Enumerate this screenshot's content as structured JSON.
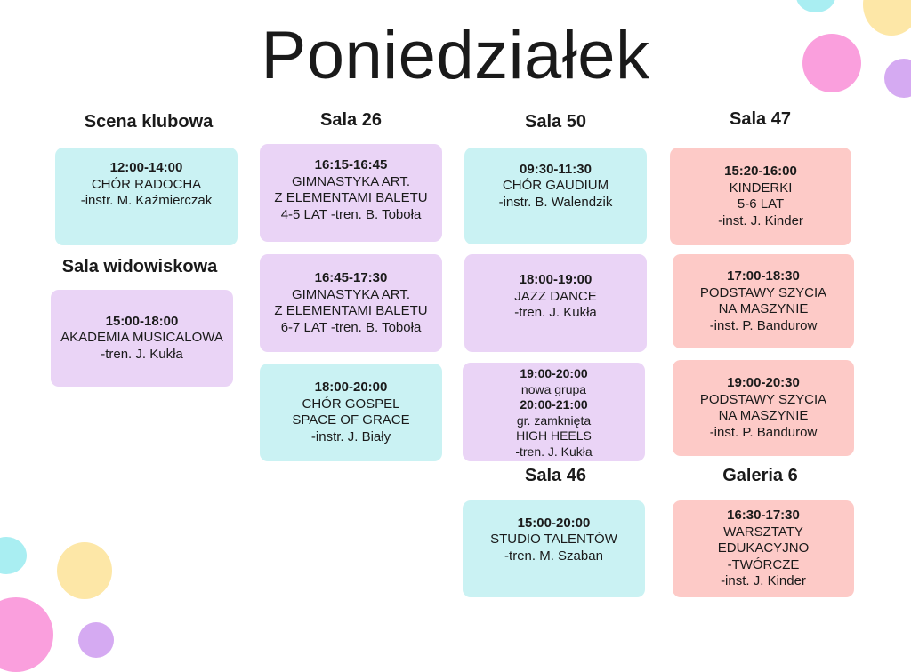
{
  "title": "Poniedziałek",
  "colors": {
    "cyan": "#caf2f3",
    "lilac": "#ead4f6",
    "pink": "#fdcac7"
  },
  "headings": {
    "scena_klubowa": "Scena klubowa",
    "sala_26": "Sala 26",
    "sala_50": "Sala 50",
    "sala_47": "Sala 47",
    "sala_widowiskowa": "Sala widowiskowa",
    "sala_46": "Sala 46",
    "galeria_6": "Galeria 6"
  },
  "cards": {
    "scena_klubowa_1": {
      "time": "12:00-14:00",
      "lines": [
        "CHÓR RADOCHA",
        "-instr. M. Kaźmierczak"
      ]
    },
    "sala_widowiskowa_1": {
      "time": "15:00-18:00",
      "lines": [
        "AKADEMIA MUSICALOWA",
        "-tren. J. Kukła"
      ]
    },
    "sala_26_1": {
      "time": "16:15-16:45",
      "lines": [
        "GIMNASTYKA ART.",
        "Z ELEMENTAMI BALETU",
        "4-5 LAT -tren. B. Toboła"
      ]
    },
    "sala_26_2": {
      "time": "16:45-17:30",
      "lines": [
        "GIMNASTYKA ART.",
        "Z ELEMENTAMI BALETU",
        "6-7 LAT -tren. B. Toboła"
      ]
    },
    "sala_26_3": {
      "time": "18:00-20:00",
      "lines": [
        "CHÓR GOSPEL",
        "SPACE OF GRACE",
        "-instr. J. Biały"
      ]
    },
    "sala_50_1": {
      "time": "09:30-11:30",
      "lines": [
        "CHÓR GAUDIUM",
        "-instr. B. Walendzik"
      ]
    },
    "sala_50_2": {
      "time": "18:00-19:00",
      "lines": [
        "JAZZ DANCE",
        "-tren. J. Kukła"
      ]
    },
    "sala_50_3": {
      "time": "19:00-20:00",
      "line1": "nowa grupa",
      "time2": "20:00-21:00",
      "lines": [
        "gr. zamknięta",
        "HIGH HEELS",
        "-tren. J. Kukła"
      ]
    },
    "sala_46_1": {
      "time": "15:00-20:00",
      "lines": [
        "STUDIO TALENTÓW",
        "-tren. M. Szaban"
      ]
    },
    "sala_47_1": {
      "time": "15:20-16:00",
      "lines": [
        "KINDERKI",
        "5-6 LAT",
        "-inst. J. Kinder"
      ]
    },
    "sala_47_2": {
      "time": "17:00-18:30",
      "lines": [
        "PODSTAWY SZYCIA",
        "NA MASZYNIE",
        "-inst. P. Bandurow"
      ]
    },
    "sala_47_3": {
      "time": "19:00-20:30",
      "lines": [
        "PODSTAWY SZYCIA",
        "NA MASZYNIE",
        "-inst. P. Bandurow"
      ]
    },
    "galeria_6_1": {
      "time": "16:30-17:30",
      "lines": [
        "WARSZTATY",
        "EDUKACYJNO",
        "-TWÓRCZE",
        "-inst. J. Kinder"
      ]
    }
  }
}
